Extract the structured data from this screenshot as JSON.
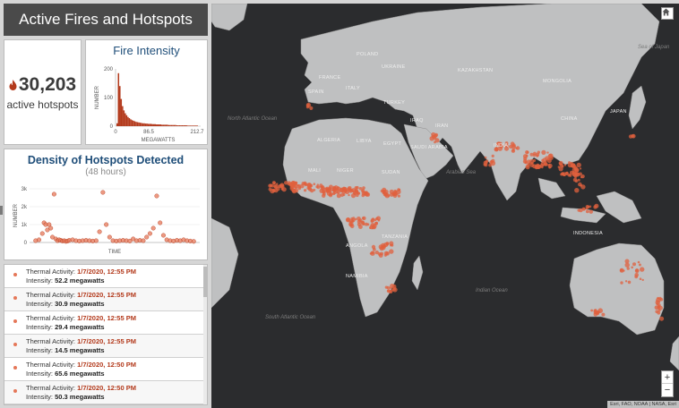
{
  "header": {
    "title": "Active Fires and Hotspots"
  },
  "counter": {
    "value": "30,203",
    "label": "active hotspots"
  },
  "intensity_chart": {
    "title": "Fire Intensity",
    "ylabel": "NUMBER",
    "xlabel": "MEGAWATTS",
    "y_ticks": [
      "200",
      "100",
      "0"
    ],
    "x_ticks": [
      "0",
      "86.5",
      "212.7"
    ],
    "accent": "#b33a1c"
  },
  "density_chart": {
    "title": "Density of Hotspots Detected",
    "subtitle": "(48 hours)",
    "ylabel": "NUMBER",
    "xlabel": "TIME",
    "y_ticks": [
      "3k",
      "2k",
      "1k",
      "0"
    ],
    "point_color": "#e57758"
  },
  "chart_data": [
    {
      "type": "bar",
      "title": "Fire Intensity",
      "xlabel": "MEGAWATTS",
      "ylabel": "NUMBER",
      "ylim": [
        0,
        200
      ],
      "x_ticks": [
        0,
        86.5,
        212.7
      ],
      "values": [
        10,
        185,
        140,
        95,
        70,
        55,
        45,
        38,
        32,
        28,
        24,
        21,
        19,
        17,
        15,
        14,
        13,
        12,
        11,
        10,
        10,
        9,
        9,
        8,
        8,
        8,
        7,
        7,
        7,
        6,
        6,
        6,
        6,
        5,
        5,
        5,
        5,
        5,
        4,
        4,
        4,
        4,
        4,
        4,
        3,
        3,
        3,
        3,
        3,
        3,
        3,
        3,
        2,
        2,
        2,
        2,
        2,
        2,
        2,
        2
      ]
    },
    {
      "type": "scatter",
      "title": "Density of Hotspots Detected",
      "subtitle": "(48 hours)",
      "xlabel": "TIME",
      "ylabel": "NUMBER",
      "ylim": [
        0,
        3000
      ],
      "x": [
        2,
        4,
        6,
        7,
        8,
        9,
        10,
        11,
        12,
        13,
        14,
        15,
        16,
        17,
        18,
        19,
        20,
        21,
        22,
        24,
        26,
        28,
        30,
        32,
        34,
        36,
        38,
        40,
        42,
        44,
        46,
        48,
        50,
        52,
        54,
        56,
        58,
        60,
        62,
        64,
        66,
        68,
        70,
        72,
        74,
        76,
        78,
        80,
        82,
        84,
        86,
        88,
        90,
        92,
        94,
        96
      ],
      "y": [
        100,
        150,
        500,
        1100,
        1000,
        700,
        1000,
        800,
        300,
        2700,
        200,
        100,
        150,
        120,
        80,
        100,
        60,
        80,
        120,
        150,
        100,
        80,
        100,
        120,
        100,
        80,
        100,
        600,
        2800,
        1000,
        300,
        100,
        80,
        100,
        120,
        100,
        80,
        200,
        100,
        120,
        100,
        300,
        500,
        800,
        2600,
        1100,
        400,
        150,
        100,
        80,
        120,
        100,
        150,
        100,
        80,
        60
      ]
    }
  ],
  "activity_list": {
    "items": [
      {
        "prefix": "Thermal Activity:",
        "time": "1/7/2020, 12:55 PM",
        "intensity_label": "Intensity:",
        "intensity": "52.2 megawatts"
      },
      {
        "prefix": "Thermal Activity:",
        "time": "1/7/2020, 12:55 PM",
        "intensity_label": "Intensity:",
        "intensity": "30.9 megawatts"
      },
      {
        "prefix": "Thermal Activity:",
        "time": "1/7/2020, 12:55 PM",
        "intensity_label": "Intensity:",
        "intensity": "29.4 megawatts"
      },
      {
        "prefix": "Thermal Activity:",
        "time": "1/7/2020, 12:55 PM",
        "intensity_label": "Intensity:",
        "intensity": "14.5 megawatts"
      },
      {
        "prefix": "Thermal Activity:",
        "time": "1/7/2020, 12:50 PM",
        "intensity_label": "Intensity:",
        "intensity": "65.6 megawatts"
      },
      {
        "prefix": "Thermal Activity:",
        "time": "1/7/2020, 12:50 PM",
        "intensity_label": "Intensity:",
        "intensity": "50.3 megawatts"
      }
    ]
  },
  "map": {
    "labels": {
      "mongolia": "MONGOLIA",
      "kazakhstan": "KAZAKHSTAN",
      "ukraine": "UKRAINE",
      "poland": "POLAND",
      "france": "FRANCE",
      "spain": "SPAIN",
      "italy": "ITALY",
      "turkey": "TURKEY",
      "iran": "IRAN",
      "iraq": "IRAQ",
      "algeria": "ALGERIA",
      "libya": "LIBYA",
      "egypt": "EGYPT",
      "mali": "MALI",
      "niger": "NIGER",
      "sudan": "SUDAN",
      "saudi": "SAUDI ARABIA",
      "namibia": "NAMIBIA",
      "tanzania": "TANZANIA",
      "angola": "ANGOLA",
      "indonesia": "INDONESIA",
      "china": "CHINA",
      "india": "INDIA",
      "japan": "JAPAN"
    },
    "oceans": {
      "north_atlantic": "North Atlantic Ocean",
      "south_atlantic": "South Atlantic Ocean",
      "indian": "Indian Ocean",
      "arabian": "Arabian Sea",
      "sea_japan": "Sea of Japan"
    },
    "zoom_in": "+",
    "zoom_out": "−",
    "attribution": "Esri, FAO, NOAA | NASA, Esri",
    "fire_color": "#e0603e"
  }
}
